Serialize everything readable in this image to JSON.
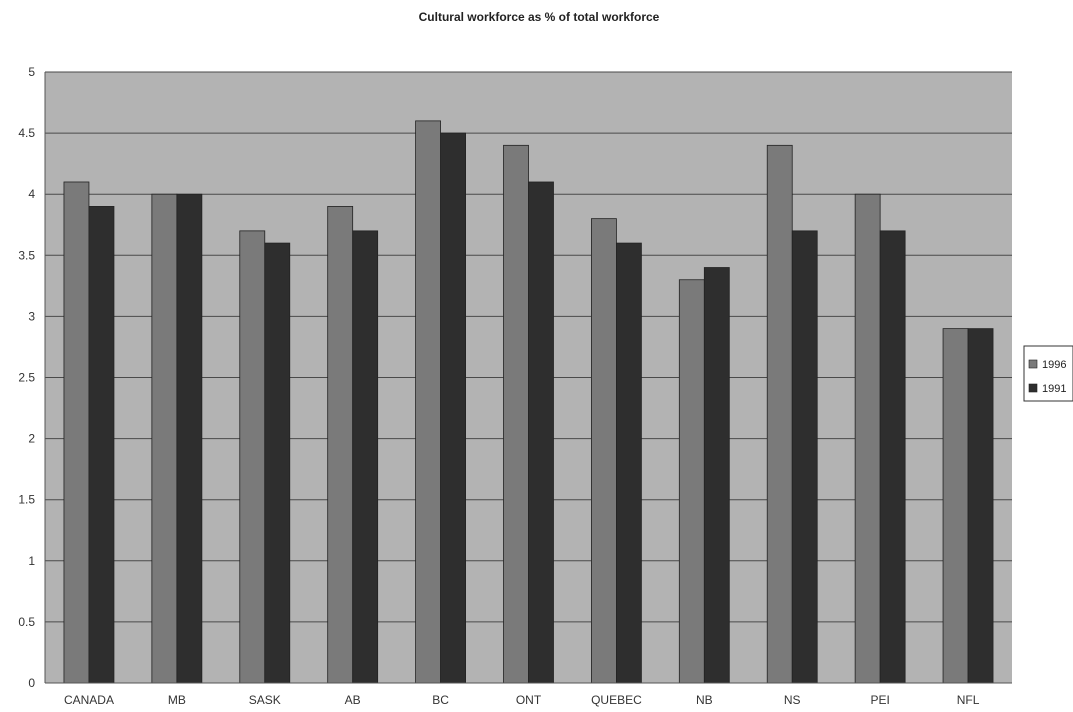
{
  "chart_data": {
    "type": "bar",
    "title": "Cultural workforce as % of total workforce",
    "xlabel": "",
    "ylabel": "",
    "categories": [
      "CANADA",
      "MB",
      "SASK",
      "AB",
      "BC",
      "ONT",
      "QUEBEC",
      "NB",
      "NS",
      "PEI",
      "NFL"
    ],
    "series": [
      {
        "name": "1996",
        "values": [
          4.1,
          4.0,
          3.7,
          3.9,
          4.6,
          4.4,
          3.8,
          3.3,
          4.4,
          4.0,
          2.9
        ],
        "color": "#7a7a7a"
      },
      {
        "name": "1991",
        "values": [
          3.9,
          4.0,
          3.6,
          3.7,
          4.5,
          4.1,
          3.6,
          3.4,
          3.7,
          3.7,
          2.9
        ],
        "color": "#2e2e2e"
      }
    ],
    "ylim": [
      0,
      5
    ],
    "yticks": [
      "0",
      "0.5",
      "1",
      "1.5",
      "2",
      "2.5",
      "3",
      "3.5",
      "4",
      "4.5",
      "5"
    ],
    "grid": true,
    "legend_position": "right",
    "plot_background": "#b3b3b3",
    "gridline_color": "#4a4a4a"
  }
}
